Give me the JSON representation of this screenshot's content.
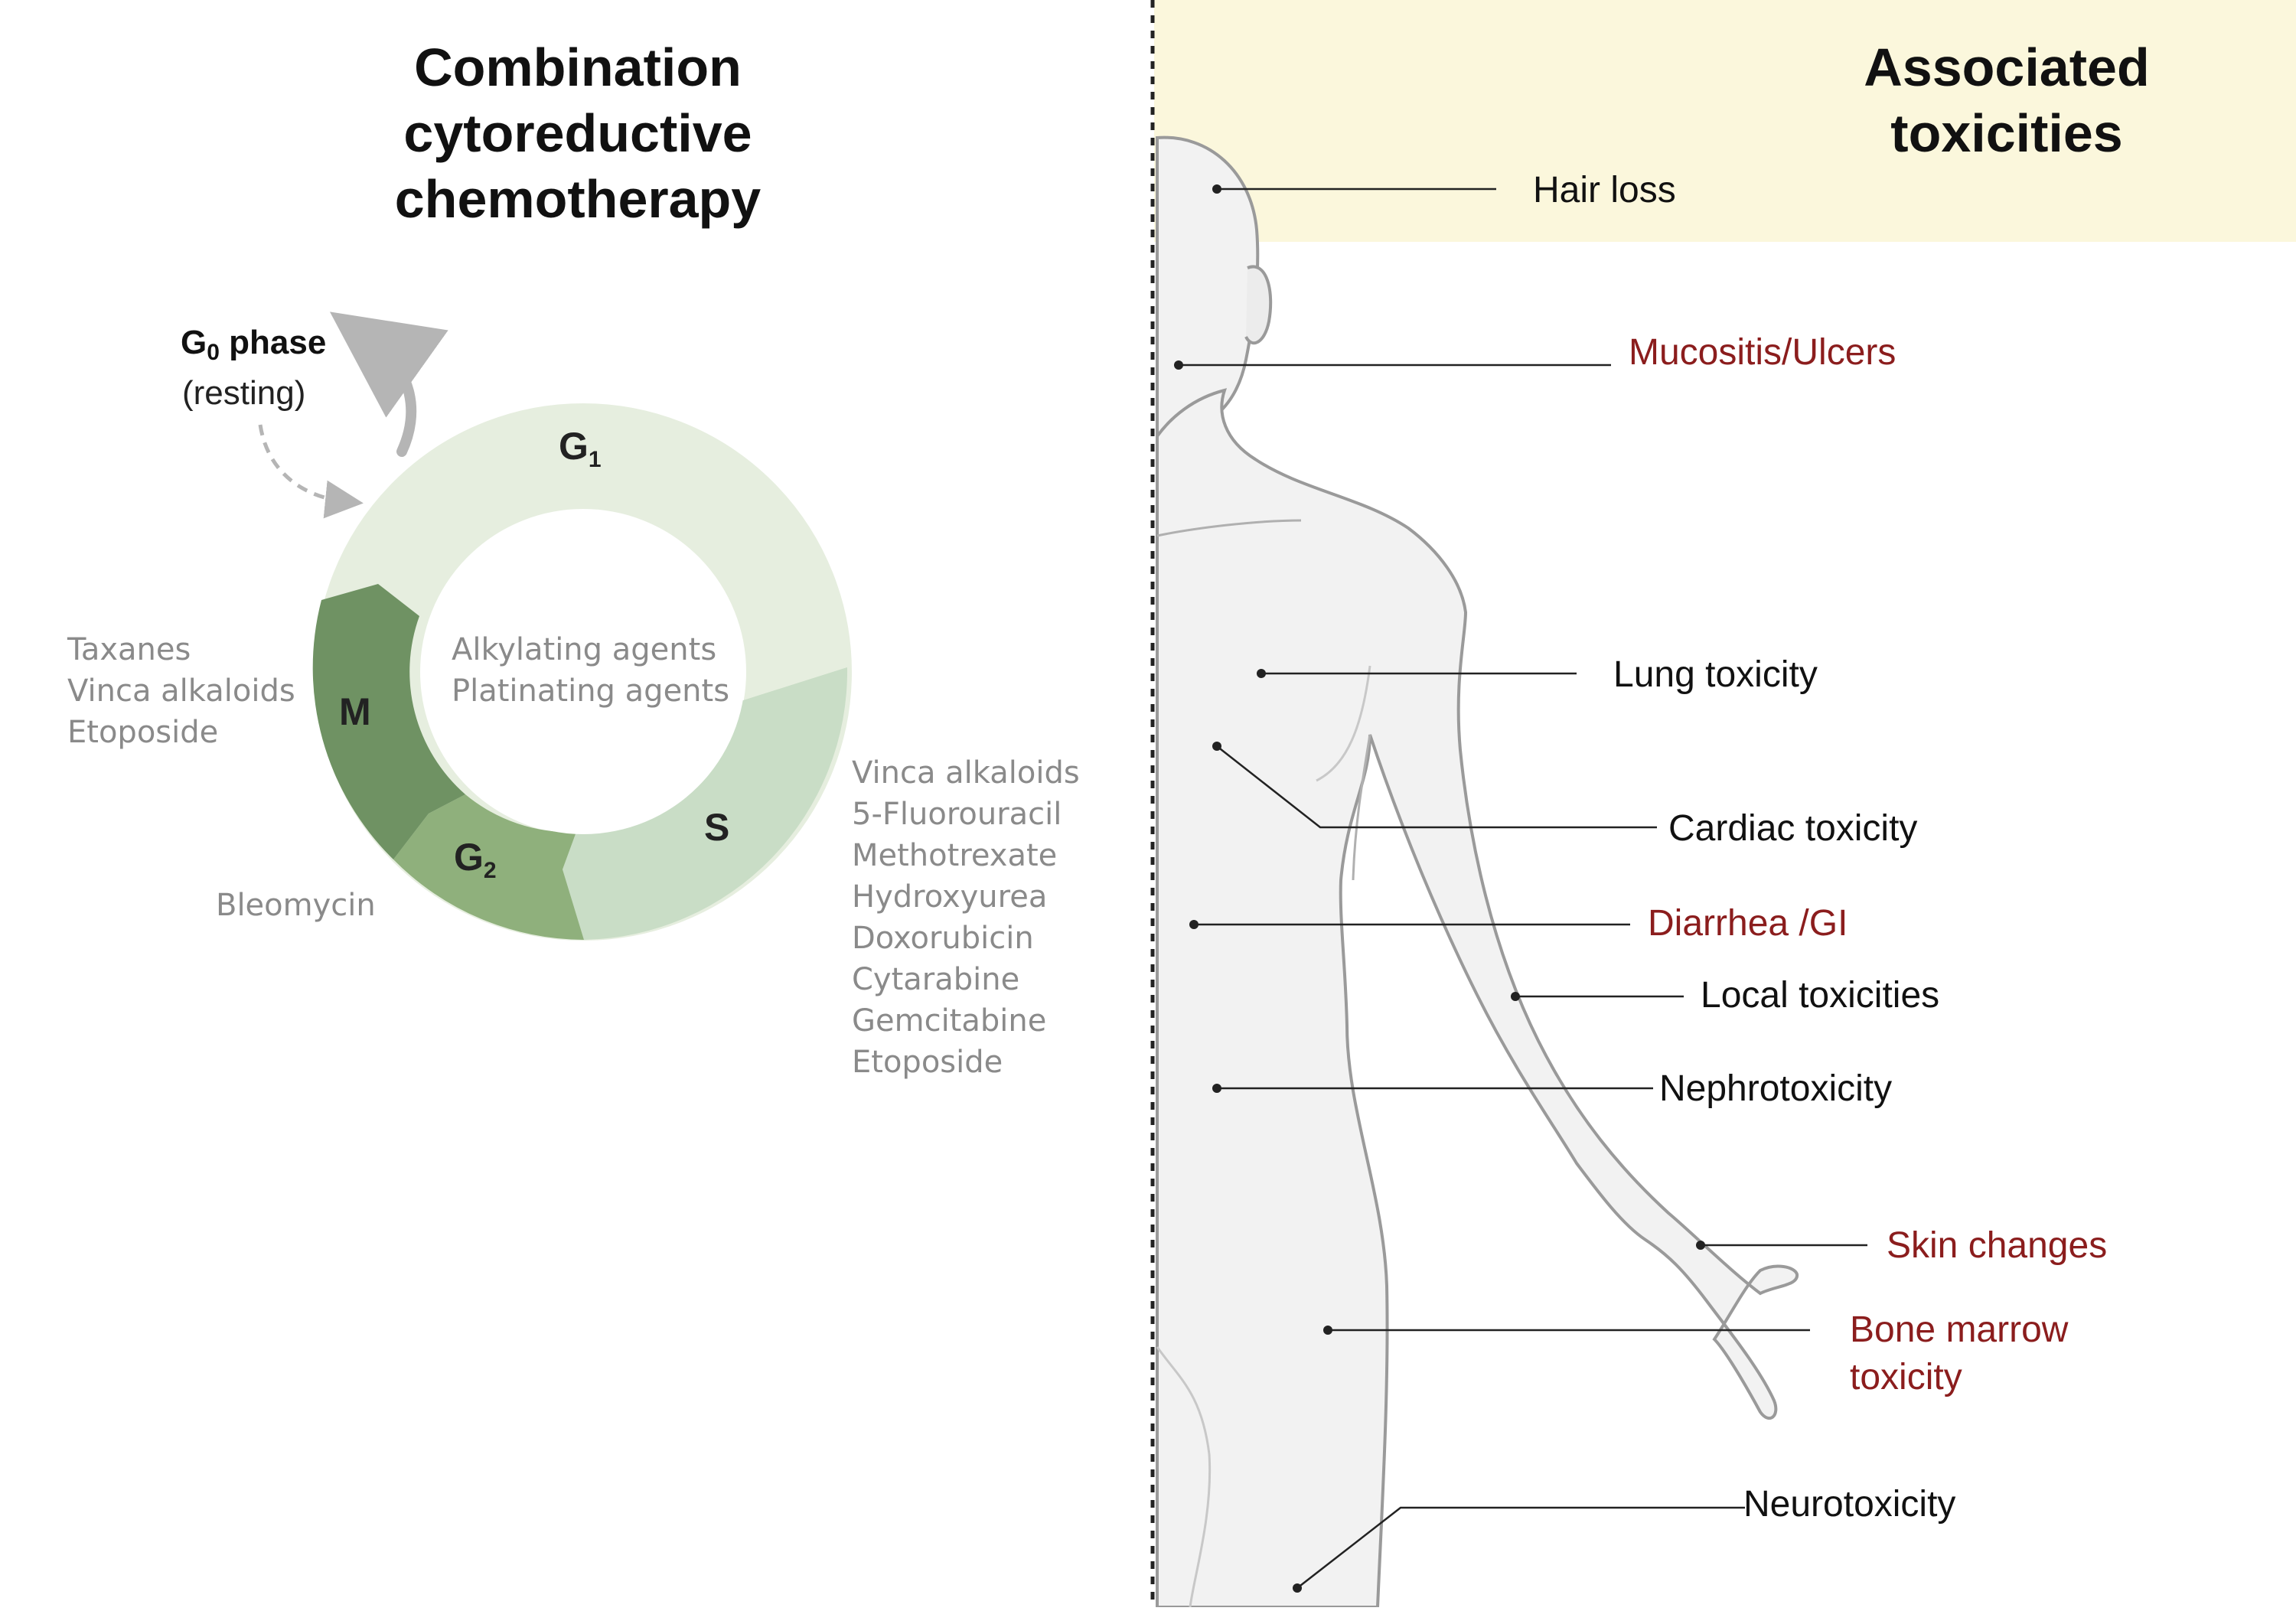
{
  "left_panel": {
    "title_lines": [
      "Combination",
      "cytoreductive",
      "chemotherapy"
    ],
    "g0": {
      "main": "G",
      "subscript": "0",
      "suffix": " phase",
      "note": "(resting)"
    },
    "phases": {
      "g1": {
        "letter": "G",
        "subscript": "1",
        "color": "#e6eedf"
      },
      "s": {
        "letter": "S",
        "color": "#c9ddc6"
      },
      "g2": {
        "letter": "G",
        "subscript": "2",
        "color": "#8fb07c"
      },
      "m": {
        "letter": "M",
        "color": "#6f9263"
      }
    },
    "center_drugs": [
      "Alkylating agents",
      "Platinating agents"
    ],
    "m_drugs": [
      "Taxanes",
      "Vinca alkaloids",
      "Etoposide"
    ],
    "g2_drugs": [
      "Bleomycin"
    ],
    "s_drugs": [
      "Vinca alkaloids",
      "5-Fluorouracil",
      "Methotrexate",
      "Hydroxyurea",
      "Doxorubicin",
      "Cytarabine",
      "Gemcitabine",
      "Etoposide"
    ]
  },
  "right_panel": {
    "title_lines": [
      "Associated",
      "toxicities"
    ],
    "header_color": "#fbf7dc",
    "toxicities": [
      {
        "label": "Hair loss",
        "highlight": false
      },
      {
        "label": "Mucositis/Ulcers",
        "highlight": true
      },
      {
        "label": "Lung toxicity",
        "highlight": false
      },
      {
        "label": "Cardiac toxicity",
        "highlight": false
      },
      {
        "label": "Diarrhea /GI",
        "highlight": true
      },
      {
        "label": "Local toxicities",
        "highlight": false
      },
      {
        "label": "Nephrotoxicity",
        "highlight": false
      },
      {
        "label": "Skin changes",
        "highlight": true
      },
      {
        "label": "Bone marrow",
        "label_line2": "toxicity",
        "highlight": true
      },
      {
        "label": "Neurotoxicity",
        "highlight": false
      }
    ],
    "highlight_color": "#8b1d1d"
  }
}
